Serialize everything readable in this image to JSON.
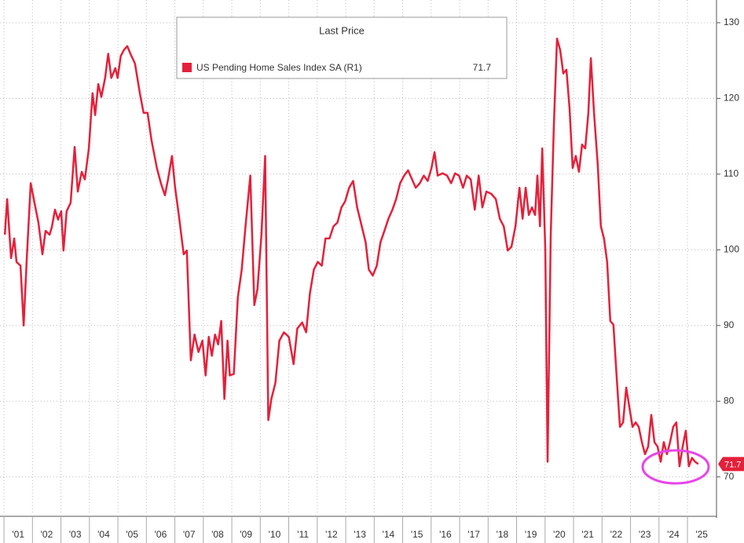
{
  "chart_data": {
    "type": "line",
    "legend_header": "Last Price",
    "last_value": 71.7,
    "xlim": [
      2000.86,
      2026.02
    ],
    "ylim": [
      65,
      133
    ],
    "grid": true,
    "xticks": [
      {
        "value": 2001,
        "label": "'01"
      },
      {
        "value": 2002,
        "label": "'02"
      },
      {
        "value": 2003,
        "label": "'03"
      },
      {
        "value": 2004,
        "label": "'04"
      },
      {
        "value": 2005,
        "label": "'05"
      },
      {
        "value": 2006,
        "label": "'06"
      },
      {
        "value": 2007,
        "label": "'07"
      },
      {
        "value": 2008,
        "label": "'08"
      },
      {
        "value": 2009,
        "label": "'09"
      },
      {
        "value": 2010,
        "label": "'10"
      },
      {
        "value": 2011,
        "label": "'11"
      },
      {
        "value": 2012,
        "label": "'12"
      },
      {
        "value": 2013,
        "label": "'13"
      },
      {
        "value": 2014,
        "label": "'14"
      },
      {
        "value": 2015,
        "label": "'15"
      },
      {
        "value": 2016,
        "label": "'16"
      },
      {
        "value": 2017,
        "label": "'17"
      },
      {
        "value": 2018,
        "label": "'18"
      },
      {
        "value": 2019,
        "label": "'19"
      },
      {
        "value": 2020,
        "label": "'20"
      },
      {
        "value": 2021,
        "label": "'21"
      },
      {
        "value": 2022,
        "label": "'22"
      },
      {
        "value": 2023,
        "label": "'23"
      },
      {
        "value": 2024,
        "label": "'24"
      },
      {
        "value": 2025,
        "label": "'25"
      }
    ],
    "yticks": [
      70,
      80,
      90,
      100,
      110,
      120,
      130
    ],
    "x": [
      2001.03,
      2001.11,
      2001.25,
      2001.36,
      2001.44,
      2001.58,
      2001.69,
      2001.8,
      2001.94,
      2002.07,
      2002.21,
      2002.35,
      2002.46,
      2002.6,
      2002.68,
      2002.79,
      2002.9,
      2003.01,
      2003.09,
      2003.2,
      2003.34,
      2003.48,
      2003.59,
      2003.73,
      2003.84,
      2003.98,
      2004.11,
      2004.2,
      2004.31,
      2004.42,
      2004.55,
      2004.66,
      2004.77,
      2004.91,
      2004.99,
      2005.1,
      2005.21,
      2005.33,
      2005.44,
      2005.6,
      2005.77,
      2005.9,
      2006.04,
      2006.18,
      2006.37,
      2006.51,
      2006.65,
      2006.76,
      2006.9,
      2007.01,
      2007.14,
      2007.31,
      2007.42,
      2007.56,
      2007.69,
      2007.83,
      2007.97,
      2008.08,
      2008.19,
      2008.3,
      2008.41,
      2008.52,
      2008.63,
      2008.74,
      2008.85,
      2008.93,
      2009.07,
      2009.21,
      2009.35,
      2009.48,
      2009.65,
      2009.79,
      2009.9,
      2010.04,
      2010.17,
      2010.28,
      2010.39,
      2010.53,
      2010.67,
      2010.83,
      2011.0,
      2011.17,
      2011.3,
      2011.47,
      2011.61,
      2011.74,
      2011.88,
      2012.02,
      2012.16,
      2012.29,
      2012.43,
      2012.57,
      2012.71,
      2012.85,
      2012.98,
      2013.12,
      2013.26,
      2013.4,
      2013.53,
      2013.7,
      2013.81,
      2013.95,
      2014.09,
      2014.22,
      2014.36,
      2014.5,
      2014.64,
      2014.77,
      2014.91,
      2015.05,
      2015.19,
      2015.33,
      2015.46,
      2015.6,
      2015.74,
      2015.88,
      2016.01,
      2016.12,
      2016.23,
      2016.4,
      2016.56,
      2016.7,
      2016.84,
      2016.98,
      2017.12,
      2017.25,
      2017.39,
      2017.53,
      2017.67,
      2017.8,
      2017.94,
      2018.11,
      2018.27,
      2018.41,
      2018.55,
      2018.69,
      2018.82,
      2018.96,
      2019.1,
      2019.21,
      2019.32,
      2019.43,
      2019.54,
      2019.65,
      2019.73,
      2019.82,
      2019.9,
      2020.01,
      2020.09,
      2020.2,
      2020.31,
      2020.42,
      2020.53,
      2020.64,
      2020.75,
      2020.86,
      2020.97,
      2021.08,
      2021.19,
      2021.3,
      2021.41,
      2021.52,
      2021.61,
      2021.72,
      2021.85,
      2021.96,
      2022.07,
      2022.18,
      2022.29,
      2022.4,
      2022.51,
      2022.63,
      2022.74,
      2022.85,
      2022.96,
      2023.07,
      2023.18,
      2023.29,
      2023.4,
      2023.51,
      2023.62,
      2023.73,
      2023.84,
      2023.95,
      2024.06,
      2024.17,
      2024.28,
      2024.39,
      2024.5,
      2024.61,
      2024.72,
      2024.83,
      2024.94,
      2025.05,
      2025.16,
      2025.27,
      2025.38
    ],
    "series": [
      {
        "name": "US Pending Home Sales Index SA  (R1)",
        "color": "#e4203a",
        "values": [
          102,
          106.7,
          98.9,
          101.5,
          98.4,
          97.9,
          90,
          98.9,
          108.8,
          106.2,
          103.6,
          99.4,
          102.5,
          102,
          103,
          105.3,
          104,
          105.1,
          99.9,
          105.1,
          106.2,
          113.6,
          107.7,
          110.3,
          109.3,
          113.4,
          120.7,
          117.8,
          121.9,
          120.2,
          122.7,
          125.9,
          122.7,
          124,
          122.7,
          125.6,
          126.4,
          126.9,
          125.9,
          124.6,
          120.7,
          118.1,
          118.1,
          114.5,
          110.8,
          108.8,
          107.2,
          109.3,
          112.4,
          108.2,
          104.6,
          99.4,
          99.9,
          85.4,
          88.8,
          86.5,
          88,
          83.4,
          88.5,
          86,
          88.8,
          87.5,
          90.6,
          80.3,
          88,
          83.4,
          83.6,
          93.7,
          97.4,
          103.1,
          109.8,
          92.7,
          94.8,
          102,
          112.4,
          77.5,
          80.3,
          82.4,
          88,
          89.1,
          88.5,
          84.9,
          89.6,
          90.4,
          89.1,
          94.2,
          97.4,
          98.4,
          97.9,
          101.5,
          101.5,
          103.1,
          103.6,
          105.6,
          106.4,
          108.2,
          109.1,
          105.6,
          103.6,
          101,
          97.4,
          96.6,
          97.9,
          101,
          102.5,
          104.1,
          105.3,
          106.7,
          108.8,
          109.8,
          110.5,
          109.3,
          108.2,
          108.8,
          109.8,
          109.1,
          110.8,
          112.9,
          109.8,
          110.1,
          109.8,
          108.8,
          110.1,
          109.8,
          108.2,
          109.8,
          109.3,
          105.3,
          109.8,
          105.6,
          107.7,
          107.4,
          106.7,
          104.1,
          103.1,
          99.9,
          100.4,
          103.1,
          108.2,
          104.1,
          108.2,
          104.6,
          105.6,
          104.6,
          109.8,
          103.1,
          113.4,
          99.9,
          72,
          102,
          116.5,
          127.9,
          126.4,
          123.3,
          123.8,
          118.6,
          110.8,
          112.4,
          110.3,
          113.9,
          113.4,
          118.1,
          125.3,
          118.1,
          111.3,
          103.1,
          101.5,
          98.4,
          90.6,
          90.1,
          83.4,
          76.6,
          77.2,
          81.8,
          79.2,
          76.6,
          77.2,
          76.6,
          74.6,
          73,
          74,
          78.2,
          74.6,
          74,
          72,
          74.6,
          73,
          74.6,
          76.6,
          77.2,
          71.4,
          74,
          76.1,
          71.4,
          72.5,
          72,
          71.7
        ]
      }
    ]
  }
}
